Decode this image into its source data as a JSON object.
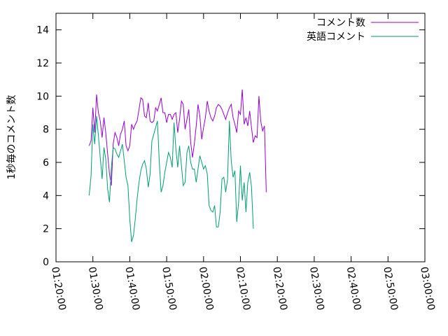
{
  "chart_data": {
    "type": "line",
    "title": "",
    "xlabel": "",
    "ylabel": "1秒毎のコメント数",
    "ylim": [
      0,
      15
    ],
    "xlim": [
      "01:20:00",
      "03:00:00"
    ],
    "yticks": [
      0,
      2,
      4,
      6,
      8,
      10,
      12,
      14
    ],
    "xticks": [
      "01:20:00",
      "01:30:00",
      "01:40:00",
      "01:50:00",
      "02:00:00",
      "02:10:00",
      "02:20:00",
      "02:30:00",
      "02:40:00",
      "02:50:00",
      "03:00:00"
    ],
    "legend_position": "top-right",
    "grid": false,
    "series": [
      {
        "name": "コメント数",
        "color": "#9400d3",
        "points": [
          [
            "01:29:00",
            7.0
          ],
          [
            "01:29:30",
            7.3
          ],
          [
            "01:30:00",
            9.3
          ],
          [
            "01:30:30",
            7.8
          ],
          [
            "01:31:00",
            10.1
          ],
          [
            "01:31:30",
            9.0
          ],
          [
            "01:32:00",
            8.5
          ],
          [
            "01:32:30",
            7.5
          ],
          [
            "01:33:00",
            8.7
          ],
          [
            "01:33:30",
            7.8
          ],
          [
            "01:34:00",
            6.5
          ],
          [
            "01:34:30",
            5.3
          ],
          [
            "01:35:00",
            4.6
          ],
          [
            "01:35:30",
            7.1
          ],
          [
            "01:36:00",
            7.8
          ],
          [
            "01:36:30",
            7.5
          ],
          [
            "01:37:00",
            7.0
          ],
          [
            "01:37:30",
            7.7
          ],
          [
            "01:38:00",
            8.0
          ],
          [
            "01:38:30",
            8.5
          ],
          [
            "01:39:00",
            7.0
          ],
          [
            "01:39:30",
            6.7
          ],
          [
            "01:40:00",
            7.0
          ],
          [
            "01:40:30",
            8.3
          ],
          [
            "01:41:00",
            8.0
          ],
          [
            "01:41:30",
            8.3
          ],
          [
            "01:42:00",
            8.5
          ],
          [
            "01:42:30",
            9.2
          ],
          [
            "01:43:00",
            9.9
          ],
          [
            "01:43:30",
            9.8
          ],
          [
            "01:44:00",
            8.8
          ],
          [
            "01:44:30",
            8.7
          ],
          [
            "01:45:00",
            9.6
          ],
          [
            "01:45:30",
            8.5
          ],
          [
            "01:46:00",
            8.4
          ],
          [
            "01:46:30",
            8.5
          ],
          [
            "01:47:00",
            9.3
          ],
          [
            "01:47:30",
            9.1
          ],
          [
            "01:48:00",
            9.5
          ],
          [
            "01:48:30",
            9.9
          ],
          [
            "01:49:00",
            9.0
          ],
          [
            "01:49:30",
            9.0
          ],
          [
            "01:50:00",
            8.4
          ],
          [
            "01:50:30",
            8.9
          ],
          [
            "01:51:00",
            8.9
          ],
          [
            "01:51:30",
            8.6
          ],
          [
            "01:52:00",
            8.9
          ],
          [
            "01:52:30",
            9.0
          ],
          [
            "01:53:00",
            7.8
          ],
          [
            "01:53:30",
            8.6
          ],
          [
            "01:54:00",
            9.7
          ],
          [
            "01:54:30",
            9.5
          ],
          [
            "01:55:00",
            8.0
          ],
          [
            "01:55:30",
            8.6
          ],
          [
            "01:56:00",
            9.2
          ],
          [
            "01:56:30",
            7.2
          ],
          [
            "01:57:00",
            6.3
          ],
          [
            "01:57:30",
            7.1
          ],
          [
            "01:58:00",
            8.2
          ],
          [
            "01:58:30",
            9.5
          ],
          [
            "01:59:00",
            8.8
          ],
          [
            "01:59:30",
            7.4
          ],
          [
            "02:00:00",
            8.1
          ],
          [
            "02:00:30",
            8.7
          ],
          [
            "02:01:00",
            9.7
          ],
          [
            "02:01:30",
            9.1
          ],
          [
            "02:02:00",
            8.7
          ],
          [
            "02:02:30",
            8.5
          ],
          [
            "02:03:00",
            8.8
          ],
          [
            "02:03:30",
            9.3
          ],
          [
            "02:04:00",
            9.5
          ],
          [
            "02:04:30",
            9.4
          ],
          [
            "02:05:00",
            9.2
          ],
          [
            "02:05:30",
            8.9
          ],
          [
            "02:06:00",
            8.6
          ],
          [
            "02:06:30",
            9.0
          ],
          [
            "02:07:00",
            9.3
          ],
          [
            "02:07:30",
            9.5
          ],
          [
            "02:08:00",
            8.7
          ],
          [
            "02:08:30",
            8.3
          ],
          [
            "02:09:00",
            7.8
          ],
          [
            "02:09:30",
            9.1
          ],
          [
            "02:10:00",
            8.9
          ],
          [
            "02:10:30",
            10.4
          ],
          [
            "02:11:00",
            8.3
          ],
          [
            "02:11:30",
            8.7
          ],
          [
            "02:12:00",
            8.2
          ],
          [
            "02:12:30",
            9.1
          ],
          [
            "02:13:00",
            8.1
          ],
          [
            "02:13:30",
            7.2
          ],
          [
            "02:14:00",
            7.6
          ],
          [
            "02:14:30",
            7.5
          ],
          [
            "02:15:00",
            10.0
          ],
          [
            "02:15:30",
            8.5
          ],
          [
            "02:16:00",
            7.9
          ],
          [
            "02:16:30",
            8.2
          ],
          [
            "02:17:00",
            4.2
          ]
        ]
      },
      {
        "name": "英語コメント",
        "color": "#009e73",
        "points": [
          [
            "01:29:00",
            4.0
          ],
          [
            "01:29:30",
            5.2
          ],
          [
            "01:30:00",
            8.3
          ],
          [
            "01:30:30",
            7.1
          ],
          [
            "01:31:00",
            8.8
          ],
          [
            "01:31:30",
            7.6
          ],
          [
            "01:32:00",
            6.3
          ],
          [
            "01:32:30",
            5.0
          ],
          [
            "01:33:00",
            6.9
          ],
          [
            "01:33:30",
            6.2
          ],
          [
            "01:34:00",
            4.4
          ],
          [
            "01:34:30",
            3.6
          ],
          [
            "01:35:00",
            5.7
          ],
          [
            "01:35:30",
            6.9
          ],
          [
            "01:36:00",
            6.8
          ],
          [
            "01:36:30",
            6.5
          ],
          [
            "01:37:00",
            6.3
          ],
          [
            "01:37:30",
            6.7
          ],
          [
            "01:38:00",
            7.1
          ],
          [
            "01:38:30",
            6.1
          ],
          [
            "01:39:00",
            5.1
          ],
          [
            "01:39:30",
            4.6
          ],
          [
            "01:40:00",
            2.6
          ],
          [
            "01:40:30",
            1.2
          ],
          [
            "01:41:00",
            1.6
          ],
          [
            "01:41:30",
            2.6
          ],
          [
            "01:42:00",
            3.8
          ],
          [
            "01:42:30",
            4.8
          ],
          [
            "01:43:00",
            5.5
          ],
          [
            "01:43:30",
            5.9
          ],
          [
            "01:44:00",
            6.1
          ],
          [
            "01:44:30",
            5.6
          ],
          [
            "01:45:00",
            4.5
          ],
          [
            "01:45:30",
            5.3
          ],
          [
            "01:46:00",
            7.3
          ],
          [
            "01:46:30",
            7.7
          ],
          [
            "01:47:00",
            8.1
          ],
          [
            "01:47:30",
            8.5
          ],
          [
            "01:48:00",
            6.0
          ],
          [
            "01:48:30",
            4.2
          ],
          [
            "01:49:00",
            4.6
          ],
          [
            "01:49:30",
            5.4
          ],
          [
            "01:50:00",
            6.0
          ],
          [
            "01:50:30",
            6.6
          ],
          [
            "01:51:00",
            6.3
          ],
          [
            "01:51:30",
            5.7
          ],
          [
            "01:52:00",
            8.4
          ],
          [
            "01:52:30",
            6.8
          ],
          [
            "01:53:00",
            5.7
          ],
          [
            "01:53:30",
            7.0
          ],
          [
            "01:54:00",
            5.8
          ],
          [
            "01:54:30",
            4.6
          ],
          [
            "01:55:00",
            4.8
          ],
          [
            "01:55:30",
            6.6
          ],
          [
            "01:56:00",
            7.0
          ],
          [
            "01:56:30",
            6.0
          ],
          [
            "01:57:00",
            5.6
          ],
          [
            "01:57:30",
            5.6
          ],
          [
            "01:58:00",
            4.8
          ],
          [
            "01:58:30",
            5.6
          ],
          [
            "01:59:00",
            6.4
          ],
          [
            "01:59:30",
            6.0
          ],
          [
            "02:00:00",
            5.6
          ],
          [
            "02:00:30",
            5.8
          ],
          [
            "02:01:00",
            5.3
          ],
          [
            "02:01:30",
            3.4
          ],
          [
            "02:02:00",
            3.1
          ],
          [
            "02:02:30",
            3.0
          ],
          [
            "02:03:00",
            3.4
          ],
          [
            "02:03:30",
            2.1
          ],
          [
            "02:04:00",
            2.1
          ],
          [
            "02:04:30",
            3.0
          ],
          [
            "02:05:00",
            5.0
          ],
          [
            "02:05:30",
            5.1
          ],
          [
            "02:06:00",
            4.2
          ],
          [
            "02:06:30",
            5.0
          ],
          [
            "02:07:00",
            8.5
          ],
          [
            "02:07:30",
            6.1
          ],
          [
            "02:08:00",
            5.1
          ],
          [
            "02:08:30",
            5.5
          ],
          [
            "02:09:00",
            2.4
          ],
          [
            "02:09:30",
            3.6
          ],
          [
            "02:10:00",
            5.8
          ],
          [
            "02:10:30",
            3.7
          ],
          [
            "02:11:00",
            4.8
          ],
          [
            "02:11:30",
            3.0
          ],
          [
            "02:12:00",
            4.8
          ],
          [
            "02:12:30",
            5.4
          ],
          [
            "02:13:00",
            4.5
          ],
          [
            "02:13:30",
            2.0
          ]
        ]
      }
    ]
  }
}
